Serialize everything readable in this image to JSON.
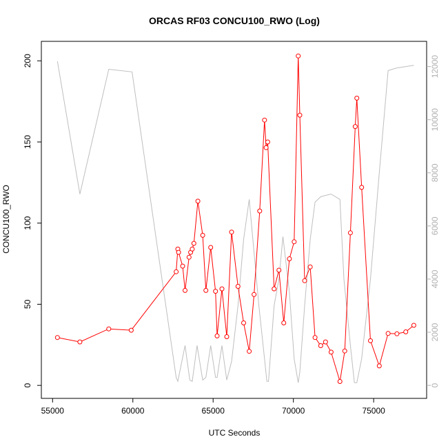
{
  "chart_data": {
    "type": "line",
    "title": "ORCAS RF03 CONCU100_RWO (Log)",
    "xlabel": "UTC Seconds",
    "ylabel": "CONCU100_RWO",
    "xlim": [
      54300,
      78300
    ],
    "ylim": [
      -8,
      212
    ],
    "y2lim": [
      -490,
      12950
    ],
    "x_ticks": [
      55000,
      60000,
      65000,
      70000,
      75000
    ],
    "y_ticks": [
      0,
      50,
      100,
      150,
      200
    ],
    "y2_ticks": [
      0,
      2000,
      4000,
      6000,
      8000,
      10000,
      12000
    ],
    "colors": {
      "primary": "#ff0000",
      "secondary": "#bebebe",
      "axis": "#000000",
      "secondary_axis": "#b0b0b0"
    },
    "series": [
      {
        "axis": "left",
        "style": "line+markers",
        "x": [
          55300,
          56700,
          58500,
          59900,
          62700,
          62800,
          62850,
          63100,
          63250,
          63500,
          63600,
          63700,
          63800,
          64050,
          64350,
          64550,
          64850,
          65150,
          65250,
          65550,
          65850,
          66150,
          66550,
          66900,
          67250,
          67550,
          67900,
          68200,
          68300,
          68400,
          68800,
          69100,
          69400,
          69750,
          70050,
          70300,
          70400,
          70700,
          71050,
          71350,
          71700,
          72000,
          72350,
          72900,
          73200,
          73550,
          73850,
          73950,
          74250,
          74800,
          75350,
          75900,
          76450,
          77000,
          77500
        ],
        "y": [
          29.5,
          26.8,
          34.8,
          34,
          70,
          84,
          82,
          73.5,
          58.5,
          79,
          82,
          84,
          87.5,
          113.5,
          92.5,
          58.5,
          85,
          58,
          30.5,
          59.5,
          30,
          94.5,
          61,
          38.5,
          21,
          56,
          107.5,
          163.5,
          146.5,
          150,
          59.5,
          71,
          38.5,
          78,
          88.5,
          203,
          166.5,
          64.5,
          73,
          29.5,
          24.5,
          26.8,
          20.5,
          2.4,
          21.2,
          94,
          159.5,
          177,
          122,
          27.5,
          12,
          32,
          31.8,
          33,
          37
        ]
      },
      {
        "axis": "right",
        "style": "line",
        "x": [
          55300,
          56700,
          58500,
          59950,
          62700,
          62800,
          63250,
          63550,
          63700,
          64000,
          64350,
          64550,
          64850,
          65150,
          65250,
          65550,
          65850,
          66150,
          66550,
          66900,
          67250,
          67550,
          67850,
          68200,
          68350,
          68450,
          68800,
          69100,
          69350,
          69750,
          70050,
          70300,
          70400,
          70700,
          71050,
          71350,
          71700,
          72000,
          72350,
          72900,
          73150,
          73550,
          73800,
          73950,
          74250,
          74800,
          75350,
          75900,
          76450,
          77000,
          77500
        ],
        "y": [
          12200,
          7200,
          11900,
          11800,
          300,
          150,
          1500,
          200,
          150,
          1500,
          200,
          300,
          1500,
          300,
          300,
          1500,
          200,
          900,
          3000,
          5500,
          7000,
          5000,
          3000,
          1000,
          150,
          150,
          3000,
          4000,
          5600,
          3500,
          1000,
          100,
          500,
          3000,
          5500,
          6900,
          7100,
          7150,
          7200,
          7000,
          4000,
          1500,
          100,
          100,
          1000,
          4000,
          8000,
          11850,
          11950,
          12000,
          12050
        ]
      }
    ]
  }
}
